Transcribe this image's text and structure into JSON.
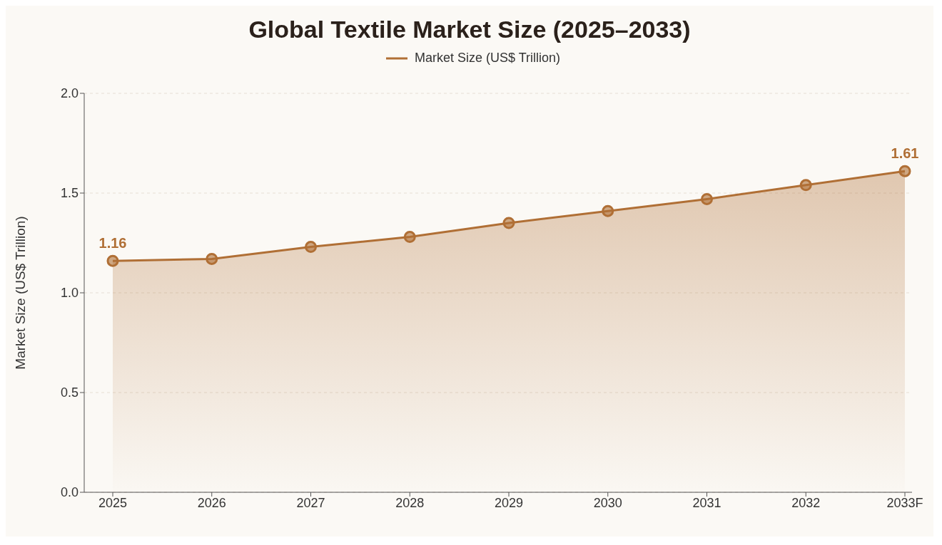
{
  "chart_data": {
    "type": "area",
    "title": "Global Textile Market Size (2025–2033)",
    "ylabel": "Market Size (US$ Trillion)",
    "categories": [
      "2025",
      "2026",
      "2027",
      "2028",
      "2029",
      "2030",
      "2031",
      "2032",
      "2033F"
    ],
    "series": [
      {
        "name": "Market Size (US$ Trillion)",
        "color": "#b06f35",
        "values": [
          1.16,
          1.17,
          1.23,
          1.28,
          1.35,
          1.41,
          1.47,
          1.54,
          1.61
        ],
        "value_labels": [
          "1.16",
          null,
          null,
          null,
          null,
          null,
          null,
          null,
          "1.61"
        ]
      }
    ],
    "ylim": [
      0,
      2.0
    ],
    "yticks": [
      {
        "value": 0,
        "label": "0.0"
      },
      {
        "value": 0.5,
        "label": "0.5"
      },
      {
        "value": 1,
        "label": "1.0"
      },
      {
        "value": 1.5,
        "label": "1.5"
      },
      {
        "value": 2,
        "label": "2.0"
      }
    ],
    "grid": "y",
    "legend": "top",
    "marker": "circle",
    "line_style": "solid"
  }
}
